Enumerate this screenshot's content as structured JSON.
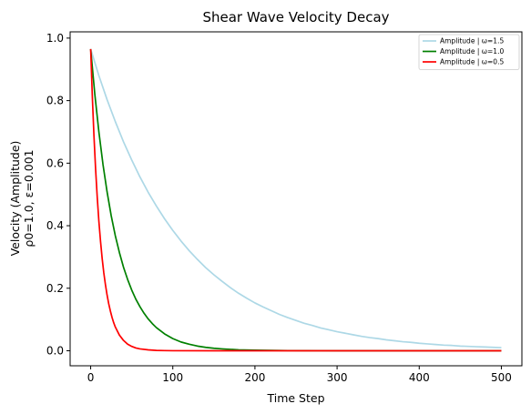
{
  "chart_data": {
    "type": "line",
    "title": "Shear Wave Velocity Decay",
    "xlabel": "Time Step",
    "ylabel_lines": [
      "Velocity (Amplitude)",
      "ρ0=1.0, ε=0.001"
    ],
    "xlim": [
      -25,
      525
    ],
    "ylim": [
      -0.048,
      1.02
    ],
    "xticks": [
      0,
      100,
      200,
      300,
      400,
      500
    ],
    "yticks": [
      0.0,
      0.2,
      0.4,
      0.6,
      0.8,
      1.0
    ],
    "xtick_labels": [
      "0",
      "100",
      "200",
      "300",
      "400",
      "500"
    ],
    "ytick_labels": [
      "0.0",
      "0.2",
      "0.4",
      "0.6",
      "0.8",
      "1.0"
    ],
    "grid": false,
    "legend_position": "top-right",
    "series": [
      {
        "name": "Amplitude | ω=1.5",
        "color": "#add8e6",
        "x": [
          0,
          10,
          20,
          30,
          40,
          50,
          60,
          70,
          80,
          90,
          100,
          110,
          120,
          130,
          140,
          150,
          160,
          170,
          180,
          190,
          200,
          210,
          220,
          230,
          240,
          250,
          260,
          270,
          280,
          290,
          300,
          310,
          320,
          330,
          340,
          350,
          360,
          370,
          380,
          390,
          400,
          410,
          420,
          430,
          440,
          450,
          460,
          470,
          480,
          490,
          500
        ],
        "values": [
          0.965,
          0.88,
          0.803,
          0.733,
          0.668,
          0.61,
          0.556,
          0.507,
          0.463,
          0.422,
          0.385,
          0.351,
          0.32,
          0.292,
          0.266,
          0.243,
          0.222,
          0.202,
          0.184,
          0.168,
          0.153,
          0.14,
          0.128,
          0.116,
          0.106,
          0.097,
          0.088,
          0.081,
          0.073,
          0.067,
          0.061,
          0.056,
          0.051,
          0.046,
          0.042,
          0.039,
          0.035,
          0.032,
          0.029,
          0.027,
          0.024,
          0.022,
          0.02,
          0.018,
          0.017,
          0.015,
          0.014,
          0.013,
          0.012,
          0.011,
          0.01
        ]
      },
      {
        "name": "Amplitude | ω=1.0",
        "color": "#008000",
        "x": [
          0,
          5,
          10,
          15,
          20,
          25,
          30,
          35,
          40,
          45,
          50,
          55,
          60,
          65,
          70,
          75,
          80,
          90,
          100,
          110,
          120,
          130,
          140,
          150,
          160,
          180,
          200,
          220,
          240,
          260,
          280,
          300,
          350,
          400,
          450,
          500
        ],
        "values": [
          0.965,
          0.822,
          0.7,
          0.596,
          0.508,
          0.432,
          0.368,
          0.314,
          0.267,
          0.228,
          0.194,
          0.165,
          0.141,
          0.12,
          0.102,
          0.087,
          0.074,
          0.054,
          0.039,
          0.028,
          0.021,
          0.015,
          0.011,
          0.008,
          0.006,
          0.003,
          0.002,
          0.001,
          0.0005,
          0.0003,
          0.0002,
          0.0001,
          0.0,
          0.0,
          0.0,
          0.0
        ]
      },
      {
        "name": "Amplitude | ω=0.5",
        "color": "#ff0000",
        "x": [
          0,
          2,
          4,
          6,
          8,
          10,
          12,
          14,
          16,
          18,
          20,
          22,
          24,
          26,
          28,
          30,
          35,
          40,
          45,
          50,
          55,
          60,
          70,
          80,
          90,
          100,
          150,
          200,
          300,
          400,
          500
        ],
        "values": [
          0.965,
          0.815,
          0.688,
          0.581,
          0.491,
          0.414,
          0.35,
          0.295,
          0.249,
          0.211,
          0.178,
          0.15,
          0.127,
          0.107,
          0.09,
          0.076,
          0.05,
          0.033,
          0.021,
          0.014,
          0.009,
          0.006,
          0.003,
          0.001,
          0.0005,
          0.0002,
          0.0,
          0.0,
          0.0,
          0.0,
          0.0
        ]
      }
    ]
  }
}
